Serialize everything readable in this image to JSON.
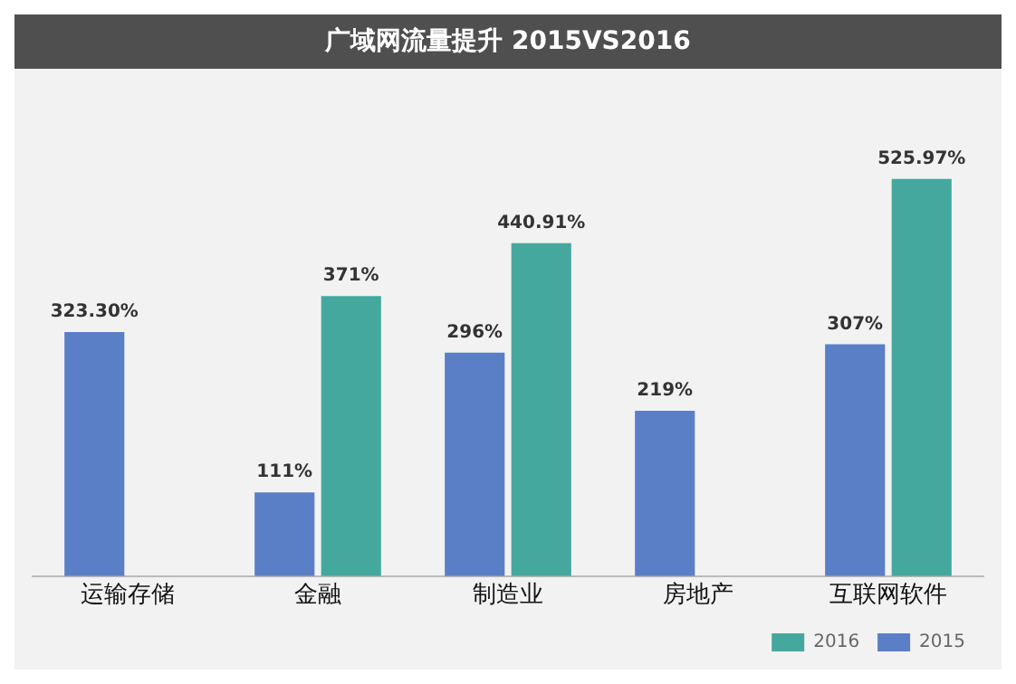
{
  "chart_data": {
    "type": "bar",
    "title": "广域网流量提升 2015VS2016",
    "categories": [
      "运输存储",
      "金融",
      "制造业",
      "房地产",
      "互联网软件"
    ],
    "series": [
      {
        "name": "2015",
        "color": "#5a7fc6",
        "values": [
          323.3,
          111,
          296,
          219,
          307
        ],
        "value_labels": [
          "323.30%",
          "111%",
          "296%",
          "219%",
          "307%"
        ]
      },
      {
        "name": "2016",
        "color": "#45a89f",
        "values": [
          null,
          371,
          440.91,
          null,
          525.97
        ],
        "value_labels": [
          null,
          "371%",
          "440.91%",
          null,
          "525.97%"
        ]
      }
    ],
    "tick_labels": "x",
    "grid": false,
    "legend": "bottom right"
  }
}
